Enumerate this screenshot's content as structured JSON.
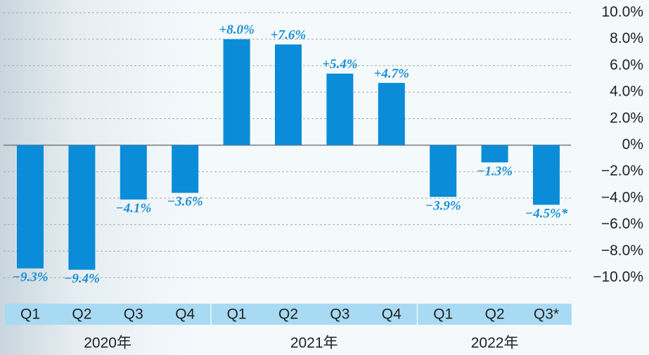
{
  "chart_data": {
    "type": "bar",
    "color": "#0a8cd8",
    "groups": [
      {
        "name": "2020年",
        "categories": [
          "Q1",
          "Q2",
          "Q3",
          "Q4"
        ],
        "values": [
          -9.3,
          -9.4,
          -4.1,
          -3.6
        ],
        "value_labels": [
          "−9.3%",
          "−9.4%",
          "−4.1%",
          "−3.6%"
        ]
      },
      {
        "name": "2021年",
        "categories": [
          "Q1",
          "Q2",
          "Q3",
          "Q4"
        ],
        "values": [
          8.0,
          7.6,
          5.4,
          4.7
        ],
        "value_labels": [
          "+8.0%",
          "+7.6%",
          "+5.4%",
          "+4.7%"
        ]
      },
      {
        "name": "2022年",
        "categories": [
          "Q1",
          "Q2",
          "Q3*"
        ],
        "values": [
          -3.9,
          -1.3,
          -4.5
        ],
        "value_labels": [
          "−3.9%",
          "−1.3%",
          "−4.5%*"
        ]
      }
    ],
    "ylim": [
      -10,
      10
    ],
    "yticks": [
      {
        "value": 10,
        "label": "10.0%"
      },
      {
        "value": 8,
        "label": "8.0%"
      },
      {
        "value": 6,
        "label": "6.0%"
      },
      {
        "value": 4,
        "label": "4.0%"
      },
      {
        "value": 2,
        "label": "2.0%"
      },
      {
        "value": 0,
        "label": "0%"
      },
      {
        "value": -2,
        "label": "−2.0%"
      },
      {
        "value": -4,
        "label": "−4.0%"
      },
      {
        "value": -6,
        "label": "−6.0%"
      },
      {
        "value": -8,
        "label": "−8.0%"
      },
      {
        "value": -10,
        "label": "−10.0%"
      }
    ],
    "grid": true
  }
}
